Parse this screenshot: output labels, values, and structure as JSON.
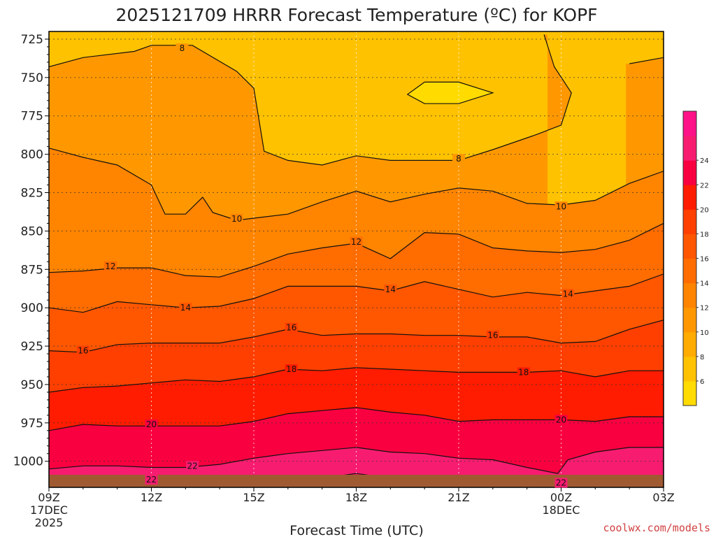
{
  "chart_data": {
    "type": "heatmap",
    "title": "2025121709 HRRR Forecast Temperature (ºC) for KOPF",
    "xlabel": "Forecast Time (UTC)",
    "ylabel": "",
    "credit": "coolwx.com/models",
    "x_tick_labels": [
      {
        "hour": 9,
        "lines": [
          "09Z",
          "17DEC",
          "2025"
        ]
      },
      {
        "hour": 12,
        "lines": [
          "12Z"
        ]
      },
      {
        "hour": 15,
        "lines": [
          "15Z"
        ]
      },
      {
        "hour": 18,
        "lines": [
          "18Z"
        ]
      },
      {
        "hour": 21,
        "lines": [
          "21Z"
        ]
      },
      {
        "hour": 24,
        "lines": [
          "00Z",
          "18DEC"
        ]
      },
      {
        "hour": 27,
        "lines": [
          "03Z"
        ]
      }
    ],
    "xlim": [
      9,
      27
    ],
    "y_ticks": [
      725,
      750,
      775,
      800,
      825,
      850,
      875,
      900,
      925,
      950,
      975,
      1000
    ],
    "ylim": [
      1017,
      720
    ],
    "grid": true,
    "colorbar": {
      "levels": [
        4,
        6,
        8,
        10,
        12,
        14,
        16,
        18,
        20,
        22,
        24,
        26
      ],
      "tick_labels": [
        "6",
        "8",
        "10",
        "12",
        "14",
        "16",
        "18",
        "20",
        "22",
        "24"
      ],
      "colors": [
        "#FFDB00",
        "#FFC200",
        "#FFAB00",
        "#FF9800",
        "#FF8400",
        "#FF6C00",
        "#FF5600",
        "#FF3F00",
        "#FF1C00",
        "#F90040",
        "#F71C70",
        "#FF1188"
      ]
    },
    "contours": [
      {
        "level": 8,
        "points": [
          [
            9,
            743
          ],
          [
            10,
            737
          ],
          [
            11.5,
            733
          ],
          [
            12,
            729
          ],
          [
            13.2,
            729
          ],
          [
            14.5,
            746
          ],
          [
            15,
            757
          ],
          [
            15.3,
            798
          ],
          [
            16,
            804
          ],
          [
            17,
            807
          ],
          [
            18,
            801
          ],
          [
            19,
            804
          ],
          [
            20,
            804
          ],
          [
            21,
            804
          ],
          [
            22,
            797
          ],
          [
            23.3,
            787
          ],
          [
            24,
            781
          ],
          [
            24.3,
            760
          ],
          [
            23.8,
            743
          ],
          [
            23.5,
            722
          ]
        ],
        "labels": [
          [
            12.9,
            731
          ],
          [
            21,
            803
          ]
        ]
      },
      {
        "level": 8,
        "points": [
          [
            20,
            753
          ],
          [
            21,
            753
          ],
          [
            22,
            760
          ],
          [
            21,
            767
          ],
          [
            20,
            767
          ],
          [
            19.5,
            761
          ],
          [
            20,
            753
          ]
        ],
        "labels": []
      },
      {
        "level": 8,
        "points": [
          [
            26,
            741
          ],
          [
            27,
            737
          ]
        ],
        "labels": []
      },
      {
        "level": 10,
        "points": [
          [
            9,
            796
          ],
          [
            10,
            802
          ],
          [
            11,
            807
          ],
          [
            12,
            820
          ],
          [
            12.4,
            839
          ],
          [
            13,
            839
          ],
          [
            13.5,
            828
          ],
          [
            13.8,
            838
          ],
          [
            14.5,
            843
          ],
          [
            16,
            839
          ],
          [
            17,
            831
          ],
          [
            18,
            824
          ],
          [
            19,
            831
          ],
          [
            20,
            826
          ],
          [
            21,
            822
          ],
          [
            22,
            824
          ],
          [
            23,
            832
          ],
          [
            24,
            833
          ],
          [
            25,
            830
          ],
          [
            26,
            819
          ],
          [
            27,
            811
          ]
        ],
        "labels": [
          [
            14.5,
            842
          ],
          [
            24,
            834
          ]
        ]
      },
      {
        "level": 12,
        "points": [
          [
            9,
            877
          ],
          [
            10,
            876
          ],
          [
            11,
            874
          ],
          [
            12,
            874
          ],
          [
            13,
            879
          ],
          [
            14,
            880
          ],
          [
            15,
            873
          ],
          [
            16,
            865
          ],
          [
            17,
            861
          ],
          [
            18,
            858
          ],
          [
            19,
            868
          ],
          [
            20,
            851
          ],
          [
            21,
            852
          ],
          [
            22,
            861
          ],
          [
            23,
            863
          ],
          [
            24,
            864
          ],
          [
            25,
            862
          ],
          [
            26,
            856
          ],
          [
            27,
            845
          ]
        ],
        "labels": [
          [
            10.8,
            873
          ],
          [
            18,
            857
          ]
        ]
      },
      {
        "level": 14,
        "points": [
          [
            9,
            900
          ],
          [
            10,
            903
          ],
          [
            11,
            896
          ],
          [
            12,
            898
          ],
          [
            13,
            900
          ],
          [
            14,
            899
          ],
          [
            15,
            894
          ],
          [
            16,
            886
          ],
          [
            17,
            886
          ],
          [
            18,
            886
          ],
          [
            19,
            889
          ],
          [
            20,
            883
          ],
          [
            21,
            888
          ],
          [
            22,
            893
          ],
          [
            23,
            890
          ],
          [
            24,
            892
          ],
          [
            25,
            889
          ],
          [
            26,
            886
          ],
          [
            27,
            878
          ]
        ],
        "labels": [
          [
            13,
            900
          ],
          [
            19,
            888
          ],
          [
            24.2,
            891
          ]
        ]
      },
      {
        "level": 16,
        "points": [
          [
            9,
            928
          ],
          [
            10,
            929
          ],
          [
            11,
            924
          ],
          [
            12,
            923
          ],
          [
            13,
            923
          ],
          [
            14,
            923
          ],
          [
            15,
            919
          ],
          [
            16,
            914
          ],
          [
            17,
            918
          ],
          [
            18,
            917
          ],
          [
            19,
            917
          ],
          [
            20,
            918
          ],
          [
            21,
            918
          ],
          [
            22,
            919
          ],
          [
            23,
            919
          ],
          [
            24,
            923
          ],
          [
            25,
            922
          ],
          [
            26,
            914
          ],
          [
            27,
            908
          ]
        ],
        "labels": [
          [
            10,
            928
          ],
          [
            16.1,
            913
          ],
          [
            22,
            918
          ]
        ]
      },
      {
        "level": 18,
        "points": [
          [
            9,
            955
          ],
          [
            10,
            952
          ],
          [
            11,
            951
          ],
          [
            12,
            949
          ],
          [
            13,
            947
          ],
          [
            14,
            948
          ],
          [
            15,
            945
          ],
          [
            16,
            940
          ],
          [
            17,
            941
          ],
          [
            18,
            939
          ],
          [
            19,
            940
          ],
          [
            20,
            941
          ],
          [
            21,
            942
          ],
          [
            22,
            942
          ],
          [
            23,
            942
          ],
          [
            24,
            941
          ],
          [
            25,
            945
          ],
          [
            26,
            941
          ],
          [
            27,
            941
          ]
        ],
        "labels": [
          [
            16.1,
            940
          ],
          [
            22.9,
            942
          ]
        ]
      },
      {
        "level": 20,
        "points": [
          [
            9,
            980
          ],
          [
            10,
            976
          ],
          [
            11,
            977
          ],
          [
            12,
            977
          ],
          [
            13,
            977
          ],
          [
            14,
            977
          ],
          [
            15,
            974
          ],
          [
            16,
            969
          ],
          [
            17,
            967
          ],
          [
            18,
            965
          ],
          [
            19,
            968
          ],
          [
            20,
            970
          ],
          [
            21,
            974
          ],
          [
            22,
            973
          ],
          [
            23,
            973
          ],
          [
            24,
            973
          ],
          [
            25,
            974
          ],
          [
            26,
            971
          ],
          [
            27,
            971
          ]
        ],
        "labels": [
          [
            12,
            976
          ],
          [
            24,
            973
          ]
        ]
      },
      {
        "level": 22,
        "points": [
          [
            9,
            1005
          ],
          [
            10,
            1003
          ],
          [
            11,
            1003
          ],
          [
            12,
            1004
          ],
          [
            13,
            1004
          ],
          [
            14,
            1002
          ],
          [
            15,
            998
          ],
          [
            16,
            995
          ],
          [
            17,
            993
          ],
          [
            18,
            991
          ],
          [
            19,
            994
          ],
          [
            20,
            995
          ],
          [
            21,
            998
          ],
          [
            22,
            999
          ],
          [
            23,
            1004
          ],
          [
            23.9,
            1008
          ],
          [
            24.2,
            999
          ],
          [
            25,
            994
          ],
          [
            26,
            991
          ],
          [
            27,
            991
          ]
        ],
        "labels": [
          [
            13.2,
            1003
          ]
        ]
      },
      {
        "level": 22,
        "points": [
          [
            9,
            1016
          ],
          [
            10,
            1013
          ],
          [
            12,
            1013
          ],
          [
            13,
            1013
          ],
          [
            13.5,
            1016
          ]
        ],
        "labels": [
          [
            12,
            1012
          ]
        ]
      },
      {
        "level": 22,
        "points": [
          [
            15,
            1016
          ],
          [
            16,
            1013
          ],
          [
            17,
            1011
          ],
          [
            18,
            1008
          ],
          [
            19,
            1011
          ],
          [
            20,
            1013
          ],
          [
            21,
            1014
          ]
        ],
        "labels": []
      },
      {
        "level": 22,
        "points": [
          [
            23.5,
            1016
          ],
          [
            24,
            1014
          ],
          [
            25,
            1014
          ],
          [
            26,
            1013
          ],
          [
            27,
            1012
          ]
        ],
        "labels": [
          [
            24,
            1014
          ]
        ]
      }
    ]
  }
}
